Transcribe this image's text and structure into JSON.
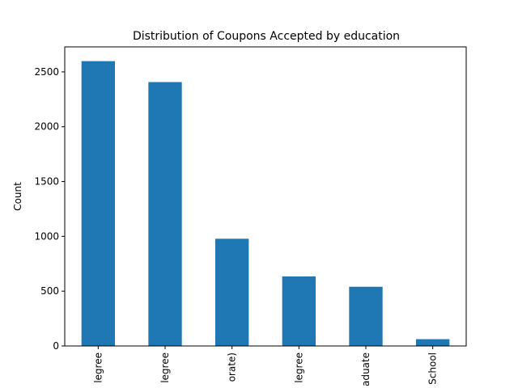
{
  "chart_data": {
    "type": "bar",
    "title": "Distribution of Coupons Accepted by education",
    "xlabel": "",
    "ylabel": "Count",
    "categories": [
      "legree",
      "legree",
      "orate)",
      "legree",
      "aduate",
      "School"
    ],
    "values": [
      2598,
      2407,
      978,
      634,
      540,
      62
    ],
    "ylim": [
      0,
      2728
    ],
    "yticks": [
      0,
      500,
      1000,
      1500,
      2000,
      2500
    ],
    "grid": false,
    "legend": "none",
    "colors": {
      "bar": "#1f77b4",
      "axis": "#000000",
      "background": "#ffffff"
    }
  }
}
